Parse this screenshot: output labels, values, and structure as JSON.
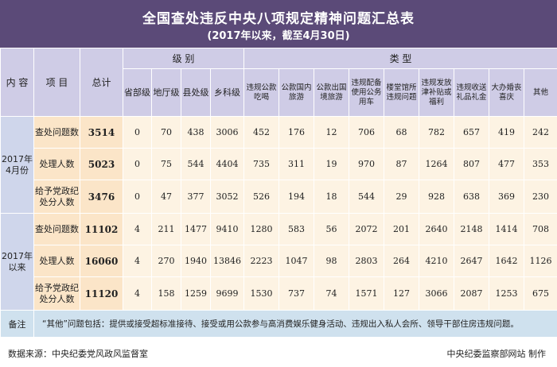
{
  "header": {
    "title": "全国查处违反中央八项规定精神问题汇总表",
    "subtitle": "(2017年以来，截至4月30日)"
  },
  "table": {
    "head_content": "内 容",
    "head_item": "项 目",
    "head_total": "总计",
    "group_level": "级 别",
    "group_type": "类 型",
    "level_columns": [
      "省部级",
      "地厅级",
      "县处级",
      "乡科级"
    ],
    "type_columns": [
      "违规公款吃喝",
      "公款国内旅游",
      "公款出国境旅游",
      "违规配备使用公务用车",
      "楼堂馆所违规问题",
      "违规发放津补贴或福利",
      "违规收送礼品礼金",
      "大办婚丧喜庆",
      "其他"
    ],
    "groups": [
      {
        "label": "2017年4月份",
        "rows": [
          {
            "item": "查处问题数",
            "total": "3514",
            "levels": [
              "0",
              "70",
              "438",
              "3006"
            ],
            "types": [
              "452",
              "176",
              "12",
              "706",
              "68",
              "782",
              "657",
              "419",
              "242"
            ]
          },
          {
            "item": "处理人数",
            "total": "5023",
            "levels": [
              "0",
              "75",
              "544",
              "4404"
            ],
            "types": [
              "735",
              "311",
              "19",
              "970",
              "87",
              "1264",
              "807",
              "477",
              "353"
            ]
          },
          {
            "item": "给予党政纪处分人数",
            "total": "3476",
            "levels": [
              "0",
              "47",
              "377",
              "3052"
            ],
            "types": [
              "526",
              "194",
              "18",
              "544",
              "29",
              "928",
              "638",
              "369",
              "230"
            ]
          }
        ]
      },
      {
        "label": "2017年以来",
        "rows": [
          {
            "item": "查处问题数",
            "total": "11102",
            "levels": [
              "4",
              "211",
              "1477",
              "9410"
            ],
            "types": [
              "1280",
              "583",
              "56",
              "2072",
              "201",
              "2640",
              "2148",
              "1414",
              "708"
            ]
          },
          {
            "item": "处理人数",
            "total": "16060",
            "levels": [
              "4",
              "270",
              "1940",
              "13846"
            ],
            "types": [
              "2223",
              "1047",
              "98",
              "2803",
              "264",
              "4210",
              "2647",
              "1642",
              "1126"
            ]
          },
          {
            "item": "给予党政纪处分人数",
            "total": "11120",
            "levels": [
              "4",
              "158",
              "1259",
              "9699"
            ],
            "types": [
              "1530",
              "737",
              "74",
              "1571",
              "127",
              "3066",
              "2087",
              "1253",
              "675"
            ]
          }
        ]
      }
    ],
    "note_label": "备注",
    "note_text": "“其他”问题包括：提供或接受超标准接待、接受或用公款参与高消费娱乐健身活动、违规出入私人会所、领导干部住房违规问题。"
  },
  "footer": {
    "source": "数据来源：中央纪委党风政风监督室",
    "credit": "中央纪委监察部网站  制作"
  },
  "colors": {
    "header_bg": "#5b4a78",
    "column_header_bg": "#cfcce6",
    "group_label_bg": "#cfd6eb",
    "row_label_bg": "#fbe5c8",
    "value_bg": "#fdf3e3",
    "note_bg": "#cfe1ee"
  }
}
